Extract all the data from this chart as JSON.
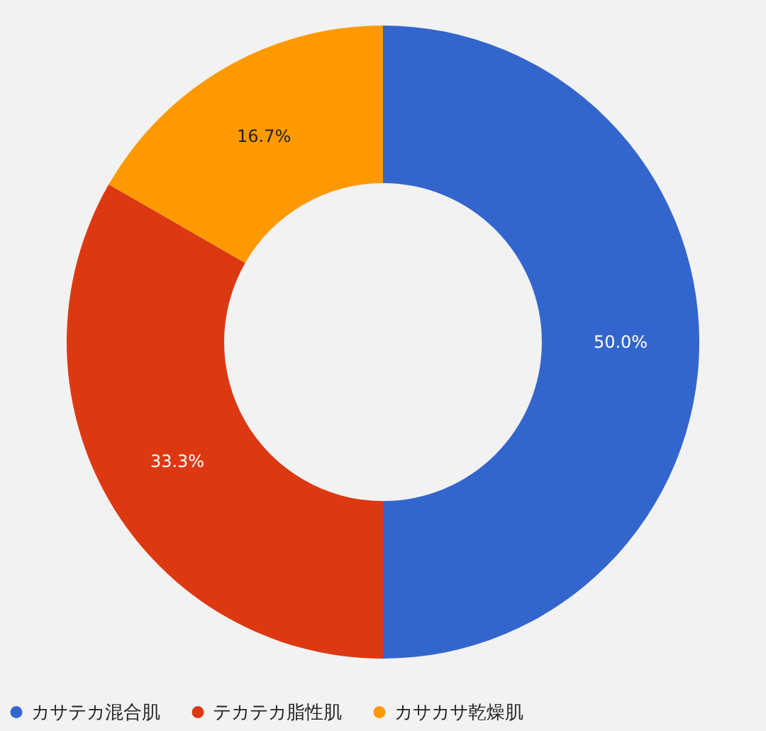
{
  "chart_data": {
    "type": "donut",
    "categories": [
      "カサテカ混合肌",
      "テカテカ脂性肌",
      "カサカサ乾燥肌"
    ],
    "values": [
      50.0,
      33.3,
      16.7
    ],
    "colors": [
      "#3366cc",
      "#dc3912",
      "#ff9900"
    ],
    "value_labels": [
      "50.0%",
      "33.3%",
      "16.7%"
    ],
    "legend": "bottom"
  }
}
